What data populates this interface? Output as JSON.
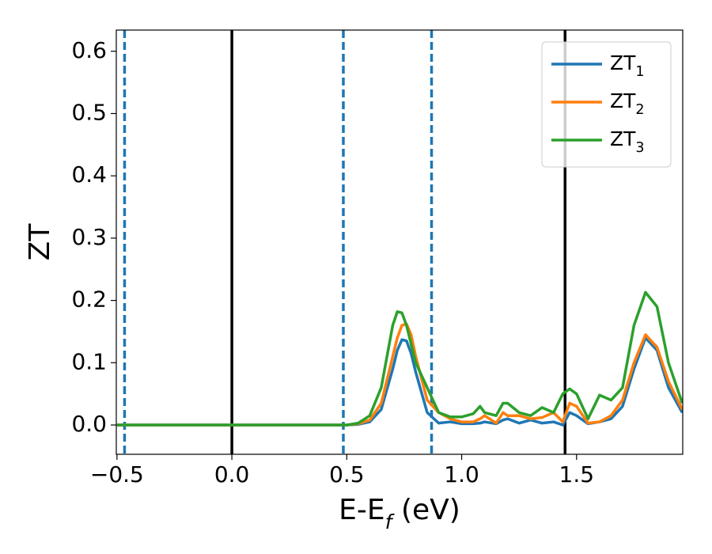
{
  "chart_data": {
    "type": "line",
    "xlabel": "E-E$_f$ (eV)",
    "ylabel": "ZT",
    "xlim": [
      -0.503,
      1.962
    ],
    "ylim": [
      -0.047,
      0.634
    ],
    "xticks": [
      {
        "value": -0.5,
        "label": "−0.5"
      },
      {
        "value": 0,
        "label": "0.0"
      },
      0.5,
      {
        "value": 1,
        "label": "1.0"
      },
      1.5
    ],
    "yticks": [
      {
        "value": 0,
        "label": "0.0"
      },
      0.1,
      0.2,
      0.3,
      0.4,
      0.5,
      0.6
    ],
    "legend": "upper right",
    "vlines": [
      {
        "x": -0.467,
        "color": "#1f77b4",
        "style": "dashed"
      },
      {
        "x": 0,
        "color": "#000000",
        "style": "solid"
      },
      {
        "x": 0.485,
        "color": "#1f77b4",
        "style": "dashed"
      },
      {
        "x": 0.869,
        "color": "#1f77b4",
        "style": "dashed"
      },
      {
        "x": 1.45,
        "color": "#000000",
        "style": "solid"
      }
    ],
    "x": [
      -0.5,
      0,
      0.5,
      0.55,
      0.6,
      0.65,
      0.7,
      0.72,
      0.74,
      0.76,
      0.78,
      0.8,
      0.85,
      0.9,
      0.95,
      1.0,
      1.05,
      1.08,
      1.1,
      1.15,
      1.18,
      1.2,
      1.25,
      1.3,
      1.35,
      1.4,
      1.44,
      1.47,
      1.5,
      1.55,
      1.6,
      1.65,
      1.7,
      1.75,
      1.8,
      1.85,
      1.9,
      1.96
    ],
    "series": [
      {
        "name": "ZT$_1$",
        "color": "#1f77b4",
        "values": [
          0,
          0,
          0,
          0.001,
          0.005,
          0.025,
          0.09,
          0.12,
          0.137,
          0.135,
          0.115,
          0.085,
          0.02,
          0.003,
          0.005,
          0.002,
          0.002,
          0.003,
          0.005,
          0.002,
          0.008,
          0.01,
          0.003,
          0.008,
          0.003,
          0.005,
          0.0,
          0.02,
          0.015,
          0.002,
          0.005,
          0.01,
          0.03,
          0.09,
          0.14,
          0.12,
          0.06,
          0.02
        ]
      },
      {
        "name": "ZT$_2$",
        "color": "#ff7f0e",
        "values": [
          0,
          0,
          0,
          0.002,
          0.008,
          0.035,
          0.11,
          0.14,
          0.16,
          0.162,
          0.145,
          0.11,
          0.04,
          0.02,
          0.01,
          0.005,
          0.005,
          0.01,
          0.015,
          0.003,
          0.02,
          0.015,
          0.015,
          0.01,
          0.012,
          0.02,
          0.005,
          0.035,
          0.03,
          0.003,
          0.005,
          0.015,
          0.04,
          0.1,
          0.145,
          0.125,
          0.07,
          0.025
        ]
      },
      {
        "name": "ZT$_3$",
        "color": "#2ca02c",
        "values": [
          0,
          0,
          0,
          0.003,
          0.015,
          0.06,
          0.16,
          0.182,
          0.18,
          0.16,
          0.13,
          0.1,
          0.06,
          0.02,
          0.013,
          0.013,
          0.018,
          0.03,
          0.02,
          0.015,
          0.035,
          0.035,
          0.02,
          0.015,
          0.028,
          0.02,
          0.05,
          0.058,
          0.05,
          0.01,
          0.048,
          0.04,
          0.06,
          0.16,
          0.213,
          0.19,
          0.1,
          0.035
        ]
      }
    ]
  }
}
